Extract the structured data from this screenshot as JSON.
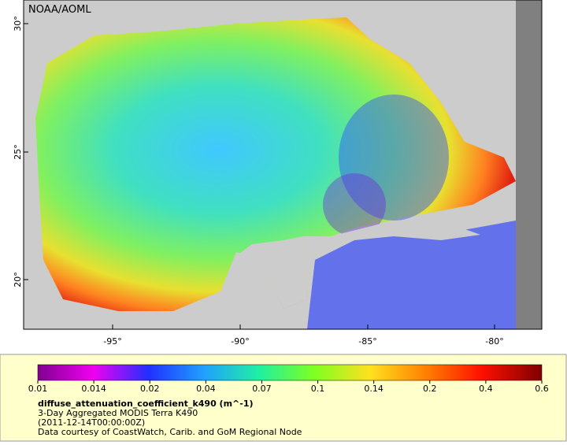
{
  "map": {
    "watermark": "NOAA/AOML",
    "lat_labels": [
      "30°",
      "25°",
      "20°"
    ],
    "lon_labels": [
      "-95°",
      "-90°",
      "-85°",
      "-80°"
    ],
    "legend": {
      "ticks": [
        "0.01",
        "0.014",
        "0.02",
        "0.04",
        "0.07",
        "0.1",
        "0.14",
        "0.2",
        "0.4",
        "0.6"
      ],
      "variable": "diffuse_attenuation_coefficient_k490 (m^-1)",
      "dataset": "3-Day Aggregated MODIS Terra K490",
      "time": "(2011-12-14T00:00:00Z)",
      "credit": "Data courtesy of CoastWatch, Carib. and GoM Regional Node"
    }
  }
}
